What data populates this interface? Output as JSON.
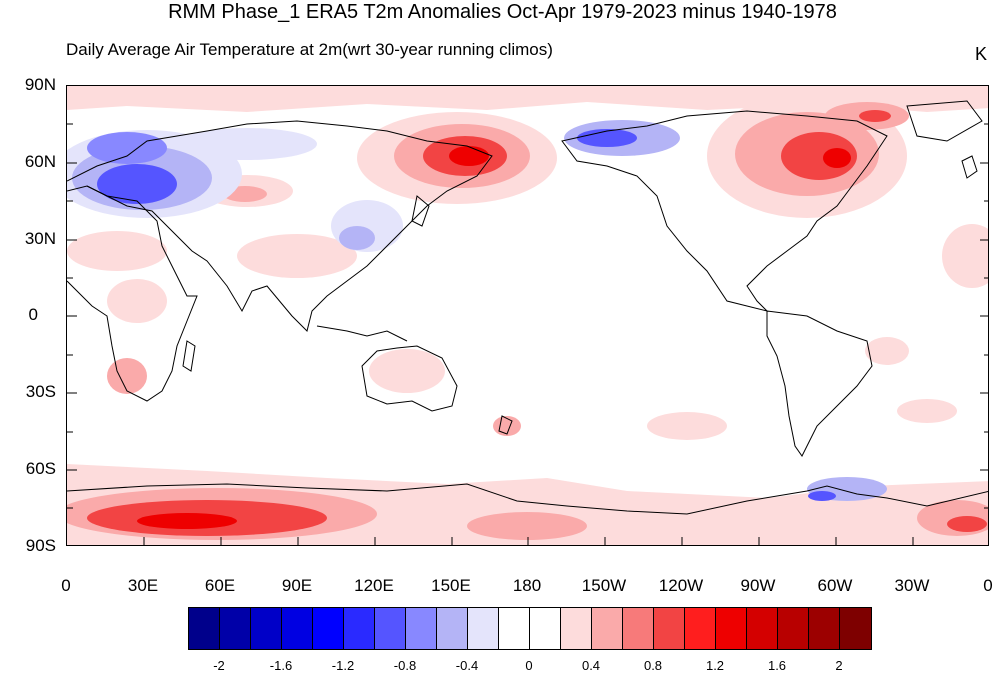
{
  "title": "RMM Phase_1 ERA5 T2m Anomalies Oct-Apr 1979-2023 minus 1940-1978",
  "subtitle": "Daily Average Air Temperature at 2m(wrt 30-year running climos)",
  "units": "K",
  "lat_labels": [
    "90N",
    "60N",
    "30N",
    "0",
    "30S",
    "60S",
    "90S"
  ],
  "lon_labels": [
    "0",
    "30E",
    "60E",
    "90E",
    "120E",
    "150E",
    "180",
    "150W",
    "120W",
    "90W",
    "60W",
    "30W",
    "0"
  ],
  "colorbar": {
    "colors": [
      "#00008b",
      "#0000a8",
      "#0000c8",
      "#0000e2",
      "#0000ff",
      "#2a2aff",
      "#5555ff",
      "#8888ff",
      "#b4b4f6",
      "#e4e4fb",
      "#ffffff",
      "#ffffff",
      "#fddcdc",
      "#faaaaa",
      "#f77a7a",
      "#f24444",
      "#ff1e1e",
      "#ee0000",
      "#d40000",
      "#b80000",
      "#9c0000",
      "#7e0000"
    ],
    "labels": [
      "-2",
      "-1.6",
      "-1.2",
      "-0.8",
      "-0.4",
      "0",
      "0.4",
      "0.8",
      "1.2",
      "1.6",
      "2"
    ]
  },
  "map_data": {
    "projection": "cylindrical equidistant",
    "lon_range": [
      0,
      360
    ],
    "lat_range": [
      -90,
      90
    ],
    "palette": {
      "warm_light": "#fddcdc",
      "warm_mid": "#faaaaa",
      "warm_strong": "#f24444",
      "warm_max": "#ee0000",
      "cool_light": "#e4e4fb",
      "cool_mid": "#b4b4f6",
      "cool_strong": "#5555ff",
      "cool_max": "#2a2aff"
    }
  }
}
